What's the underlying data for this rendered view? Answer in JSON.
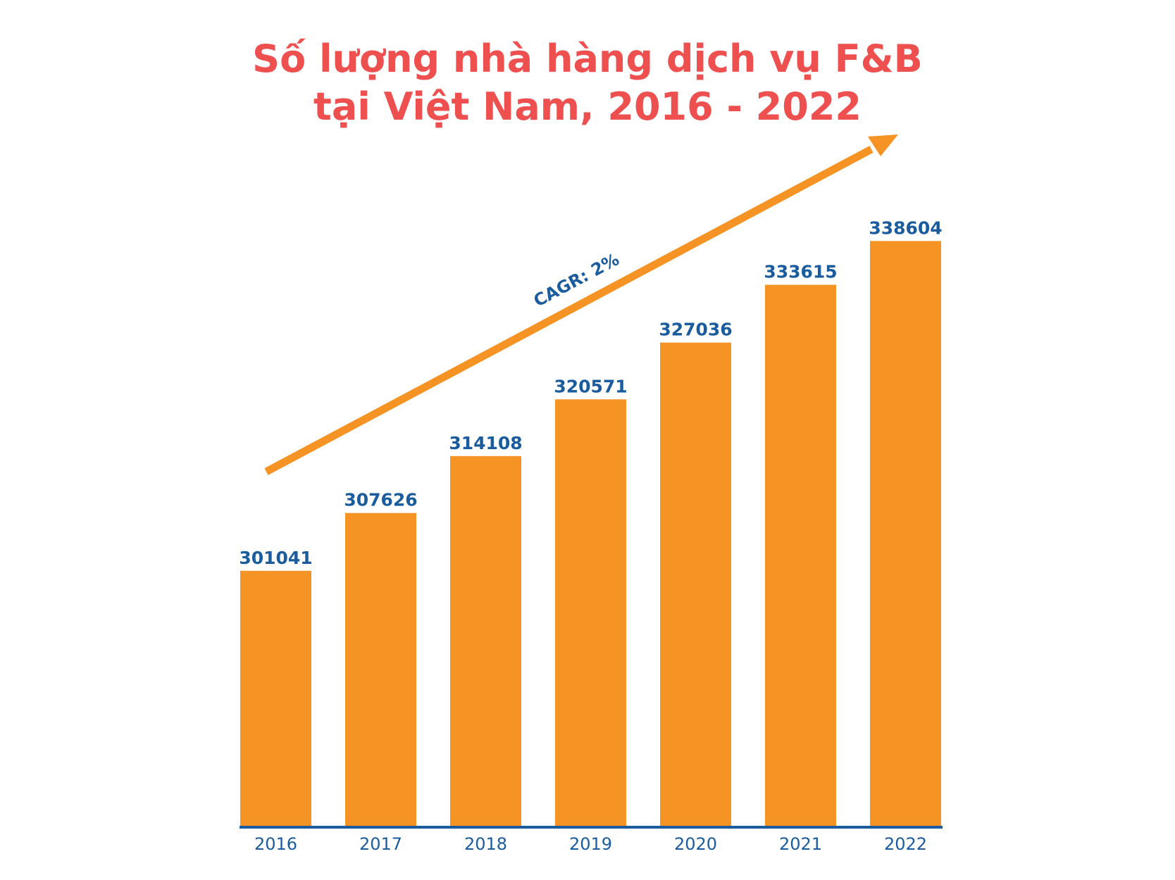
{
  "title": {
    "line1": "Số lượng nhà hàng dịch vụ F&B",
    "line2": "tại Việt Nam, 2016 - 2022"
  },
  "colors": {
    "bar": "#f59324",
    "value_label": "#1b5c9e",
    "axis_line": "#1b5c9e",
    "tick_label": "#1b5c9e",
    "title": "#ee4f4f",
    "arrow": "#f59324",
    "annotation": "#1b5c9e"
  },
  "chart_data": {
    "type": "bar",
    "title": "Số lượng nhà hàng dịch vụ F&B tại Việt Nam, 2016 - 2022",
    "xlabel": "",
    "ylabel": "",
    "categories": [
      "2016",
      "2017",
      "2018",
      "2019",
      "2020",
      "2021",
      "2022"
    ],
    "values": [
      301041,
      307626,
      314108,
      320571,
      327036,
      333615,
      338604
    ],
    "value_labels": [
      "301041",
      "307626",
      "314108",
      "320571",
      "327036",
      "333615",
      "338604"
    ],
    "ylim": [
      272000,
      342000
    ],
    "grid": false,
    "legend": "none",
    "annotation": {
      "text": "CAGR: 2%",
      "type": "trend-arrow"
    }
  }
}
